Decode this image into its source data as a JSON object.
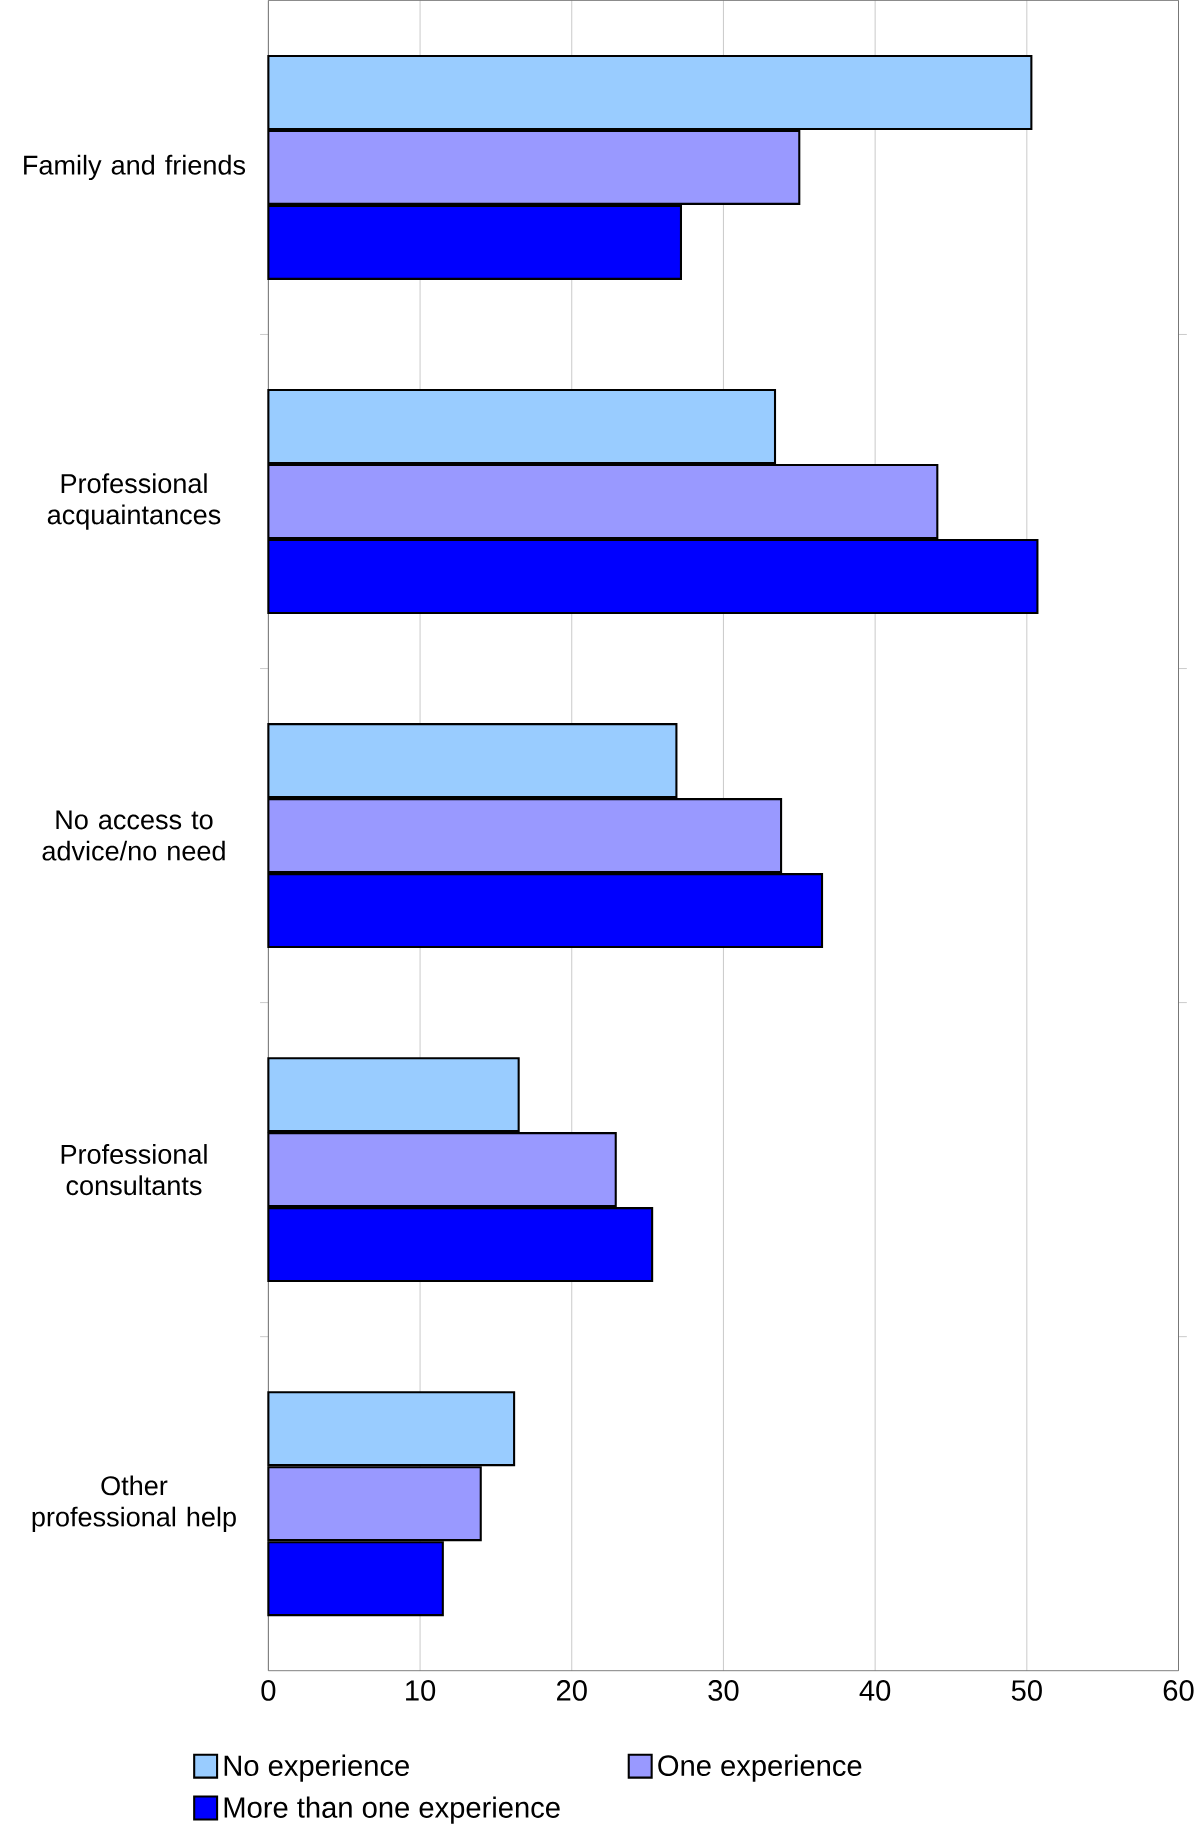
{
  "chart_data": {
    "type": "bar",
    "orientation": "horizontal",
    "categories": [
      "Family and friends",
      "Professional acquaintances",
      "No access to advice/no need",
      "Professional consultants",
      "Other professional help"
    ],
    "series": [
      {
        "name": "No experience",
        "color": "#99ccff",
        "values": [
          50.3,
          33.4,
          26.9,
          16.5,
          16.2
        ]
      },
      {
        "name": "One experience",
        "color": "#9999ff",
        "values": [
          35.0,
          44.1,
          33.8,
          22.9,
          14.0
        ]
      },
      {
        "name": "More than one experience",
        "color": "#0000ff",
        "values": [
          27.2,
          50.7,
          36.5,
          25.3,
          11.5
        ]
      }
    ],
    "xlim": [
      0,
      60
    ],
    "xticks": [
      0,
      10,
      20,
      30,
      40,
      50,
      60
    ],
    "grid": "x",
    "legend": "bottom"
  }
}
